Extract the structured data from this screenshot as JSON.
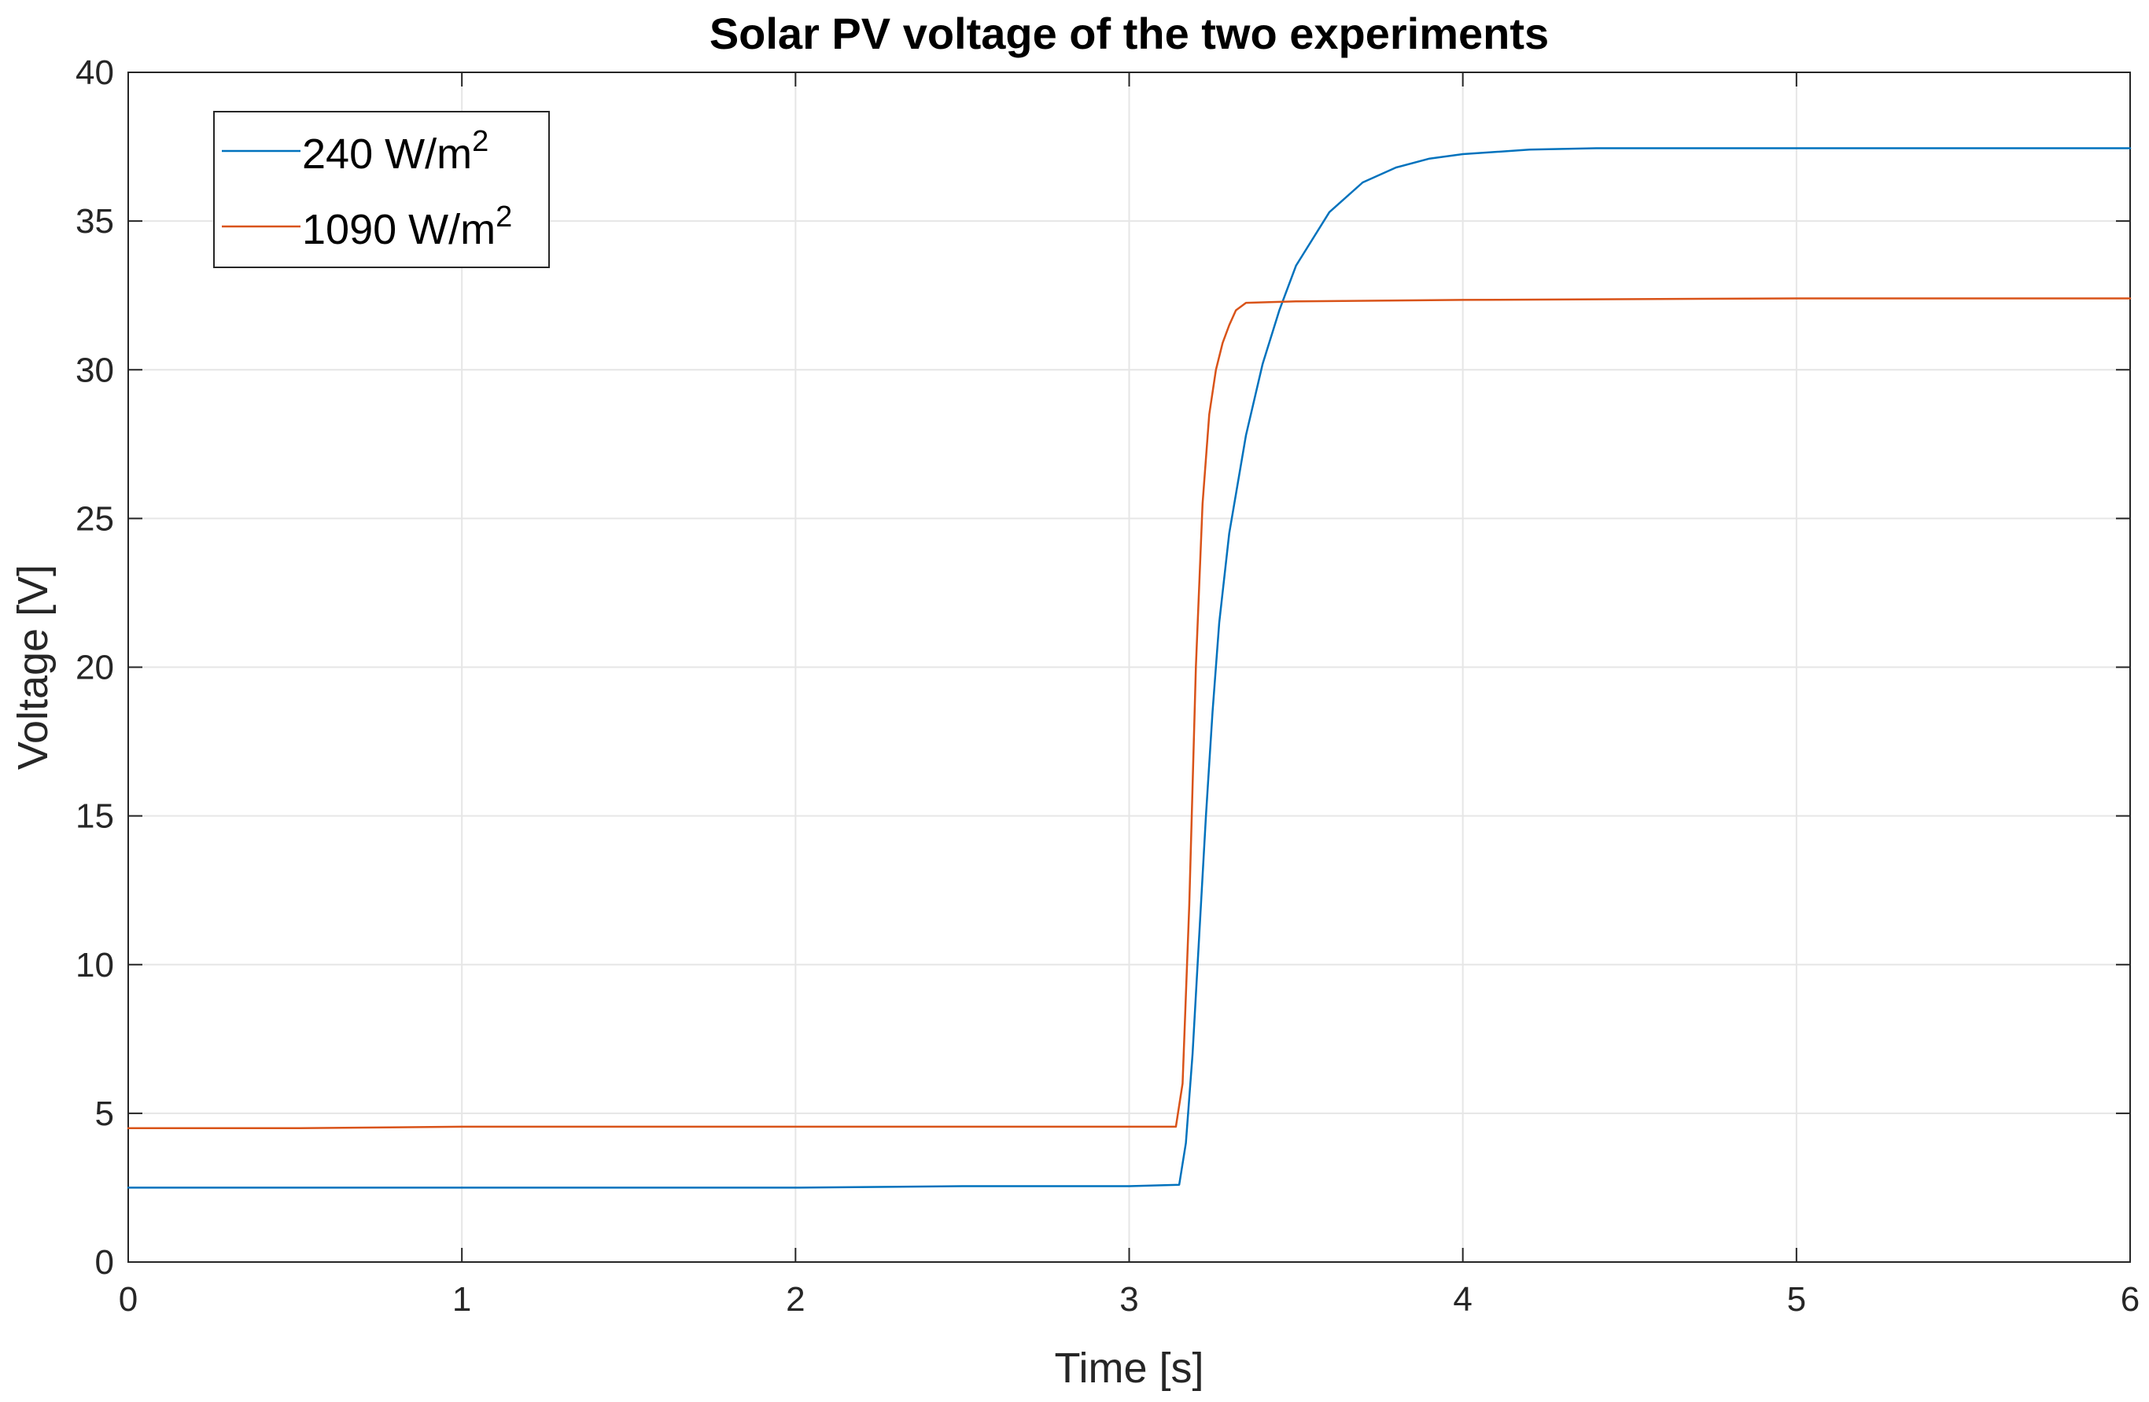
{
  "chart_data": {
    "type": "line",
    "title": "Solar PV voltage of the two experiments",
    "xlabel": "Time [s]",
    "ylabel": "Voltage [V]",
    "xlim": [
      0,
      6
    ],
    "ylim": [
      0,
      40
    ],
    "xticks": [
      0,
      1,
      2,
      3,
      4,
      5,
      6
    ],
    "yticks": [
      0,
      5,
      10,
      15,
      20,
      25,
      30,
      35,
      40
    ],
    "grid": true,
    "legend_position": "top-left",
    "colors": {
      "series_blue": "#0072BD",
      "series_orange": "#D95319",
      "grid": "#e6e6e6",
      "axis": "#262626"
    },
    "series": [
      {
        "name": "240 W/m2",
        "label_base": "240 W/m",
        "label_sup": "2",
        "color": "#0072BD",
        "x": [
          0,
          1,
          2,
          2.5,
          3.0,
          3.15,
          3.17,
          3.19,
          3.21,
          3.23,
          3.25,
          3.27,
          3.3,
          3.35,
          3.4,
          3.45,
          3.5,
          3.6,
          3.7,
          3.8,
          3.9,
          4.0,
          4.2,
          4.4,
          4.6,
          5.0,
          5.5,
          6.0
        ],
        "y": [
          2.5,
          2.5,
          2.5,
          2.55,
          2.55,
          2.6,
          4.0,
          7.0,
          11.0,
          15.0,
          18.5,
          21.5,
          24.5,
          27.8,
          30.2,
          32.0,
          33.5,
          35.3,
          36.3,
          36.8,
          37.1,
          37.25,
          37.4,
          37.45,
          37.45,
          37.45,
          37.45,
          37.45
        ]
      },
      {
        "name": "1090 W/m2",
        "label_base": "1090 W/m",
        "label_sup": "2",
        "color": "#D95319",
        "x": [
          0,
          0.5,
          1,
          2,
          3.0,
          3.14,
          3.16,
          3.18,
          3.2,
          3.22,
          3.24,
          3.26,
          3.28,
          3.3,
          3.32,
          3.35,
          3.5,
          4.0,
          5.0,
          6.0
        ],
        "y": [
          4.5,
          4.5,
          4.55,
          4.55,
          4.55,
          4.55,
          6.0,
          12.0,
          20.0,
          25.5,
          28.5,
          30.0,
          30.9,
          31.5,
          32.0,
          32.25,
          32.3,
          32.35,
          32.4,
          32.4
        ]
      }
    ]
  }
}
